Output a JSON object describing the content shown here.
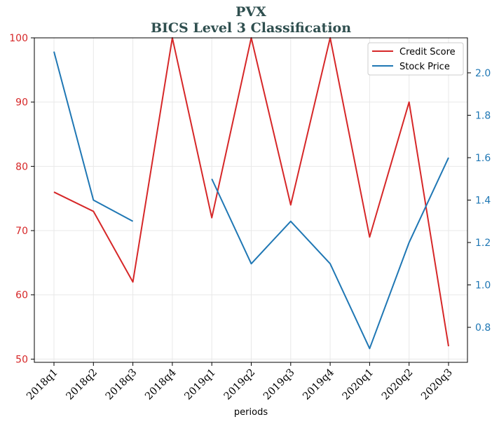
{
  "chart_data": {
    "type": "line",
    "title": "PVX",
    "subtitle": "BICS Level 3 Classification",
    "xlabel": "periods",
    "categories": [
      "2018q1",
      "2018q2",
      "2018q3",
      "2018q4",
      "2019q1",
      "2019q2",
      "2019q3",
      "2019q4",
      "2020q1",
      "2020q2",
      "2020q3"
    ],
    "series": [
      {
        "name": "Credit Score",
        "axis": "left",
        "color": "#d62728",
        "values": [
          76,
          73,
          62,
          100,
          72,
          100,
          74,
          100,
          69,
          90,
          52
        ]
      },
      {
        "name": "Stock Price",
        "axis": "right",
        "color": "#1f77b4",
        "values": [
          2.1,
          1.4,
          1.3,
          null,
          1.5,
          1.1,
          1.3,
          1.1,
          0.7,
          1.2,
          1.6
        ]
      }
    ],
    "y_left": {
      "ylim": [
        49.5,
        100
      ],
      "ticks": [
        50,
        60,
        70,
        80,
        90,
        100
      ],
      "color": "#d62728"
    },
    "y_right": {
      "ylim": [
        0.635,
        2.165
      ],
      "ticks": [
        "0.8",
        "1.0",
        "1.2",
        "1.4",
        "1.6",
        "1.8",
        "2.0"
      ],
      "color": "#1f77b4"
    },
    "grid": true,
    "legend_position": "top-right"
  }
}
